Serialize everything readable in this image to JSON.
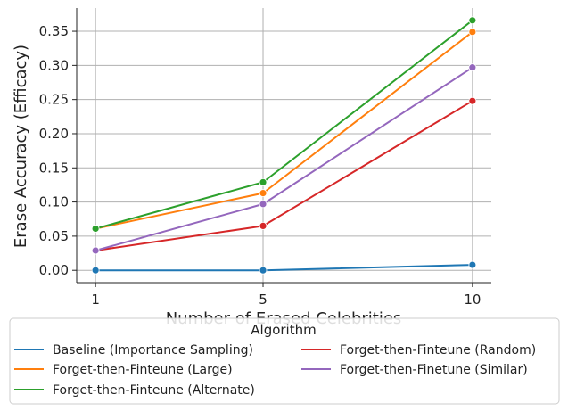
{
  "chart_data": {
    "type": "line",
    "xlabel": "Number of Erased Celebrities",
    "ylabel": "Erase Accuracy (Efficacy)",
    "x": [
      1,
      5,
      10
    ],
    "x_tick_labels": [
      "1",
      "5",
      "10"
    ],
    "y_ticks": [
      0.0,
      0.05,
      0.1,
      0.15,
      0.2,
      0.25,
      0.3,
      0.35
    ],
    "y_tick_labels": [
      "0.00",
      "0.05",
      "0.10",
      "0.15",
      "0.20",
      "0.25",
      "0.30",
      "0.35"
    ],
    "ylim": [
      -0.018,
      0.384
    ],
    "xlim": [
      0.55,
      10.45
    ],
    "grid": true,
    "legend_title": "Algorithm",
    "legend_placement": "bottom",
    "series": [
      {
        "name": "Baseline (Importance Sampling)",
        "color": "#1f77b4",
        "values": [
          0.0,
          0.0,
          0.008
        ]
      },
      {
        "name": "Forget-then-Finteune (Large)",
        "color": "#ff7f0e",
        "values": [
          0.061,
          0.113,
          0.349
        ]
      },
      {
        "name": "Forget-then-Finteune (Alternate)",
        "color": "#2ca02c",
        "values": [
          0.061,
          0.129,
          0.366
        ]
      },
      {
        "name": "Forget-then-Finteune (Random)",
        "color": "#d62728",
        "values": [
          0.029,
          0.065,
          0.248
        ]
      },
      {
        "name": "Forget-then-Finetune (Similar)",
        "color": "#9467bd",
        "values": [
          0.029,
          0.097,
          0.297
        ]
      }
    ]
  }
}
